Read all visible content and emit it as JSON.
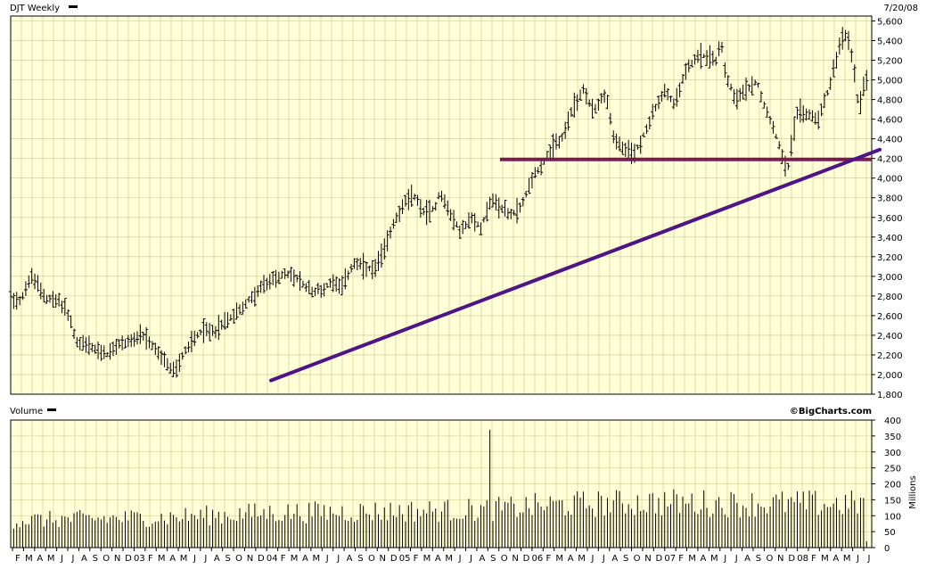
{
  "header": {
    "symbol_label": "DJT Weekly",
    "date_label": "7/20/08",
    "volume_label": "Volume",
    "watermark": "©BigCharts.com"
  },
  "colors": {
    "plot_bg": "#ffffd8",
    "grid": "#c8c88a",
    "price_bars": "#000000",
    "volume_bars": "#000000",
    "support_line": "#7a1b52",
    "trend_line": "#4d1585"
  },
  "chart_data": [
    {
      "type": "line",
      "name": "price",
      "y_ticks": [
        1800,
        2000,
        2200,
        2400,
        2600,
        2800,
        3000,
        3200,
        3400,
        3600,
        3800,
        4000,
        4200,
        4400,
        4600,
        4800,
        5000,
        5200,
        5400,
        5600
      ],
      "y_tick_labels": [
        "1,800",
        "2,000",
        "2,200",
        "2,400",
        "2,600",
        "2,800",
        "3,000",
        "3,200",
        "3,400",
        "3,600",
        "3,800",
        "4,000",
        "4,200",
        "4,400",
        "4,600",
        "4,800",
        "5,000",
        "5,200",
        "5,400",
        "5,600"
      ],
      "ylim": [
        1800,
        5650
      ],
      "x_range_weeks": [
        0,
        281
      ],
      "grid": true,
      "close_points": [
        [
          0,
          2780
        ],
        [
          4,
          2760
        ],
        [
          8,
          3000
        ],
        [
          14,
          2780
        ],
        [
          19,
          2740
        ],
        [
          22,
          2650
        ],
        [
          26,
          2320
        ],
        [
          30,
          2300
        ],
        [
          34,
          2240
        ],
        [
          38,
          2200
        ],
        [
          42,
          2300
        ],
        [
          46,
          2340
        ],
        [
          52,
          2380
        ],
        [
          56,
          2280
        ],
        [
          60,
          2140
        ],
        [
          64,
          2020
        ],
        [
          68,
          2230
        ],
        [
          74,
          2440
        ],
        [
          80,
          2450
        ],
        [
          86,
          2580
        ],
        [
          92,
          2720
        ],
        [
          98,
          2880
        ],
        [
          104,
          3000
        ],
        [
          110,
          3020
        ],
        [
          114,
          2920
        ],
        [
          118,
          2850
        ],
        [
          122,
          2860
        ],
        [
          126,
          2960
        ],
        [
          130,
          2900
        ],
        [
          134,
          3130
        ],
        [
          138,
          3100
        ],
        [
          142,
          3050
        ],
        [
          146,
          3250
        ],
        [
          150,
          3560
        ],
        [
          154,
          3740
        ],
        [
          158,
          3820
        ],
        [
          162,
          3640
        ],
        [
          166,
          3700
        ],
        [
          168,
          3860
        ],
        [
          172,
          3640
        ],
        [
          176,
          3450
        ],
        [
          180,
          3590
        ],
        [
          184,
          3500
        ],
        [
          188,
          3780
        ],
        [
          192,
          3700
        ],
        [
          196,
          3620
        ],
        [
          200,
          3720
        ],
        [
          204,
          4000
        ],
        [
          208,
          4140
        ],
        [
          212,
          4300
        ],
        [
          216,
          4420
        ],
        [
          220,
          4700
        ],
        [
          224,
          4900
        ],
        [
          228,
          4680
        ],
        [
          232,
          4850
        ],
        [
          234,
          4750
        ],
        [
          236,
          4400
        ],
        [
          240,
          4280
        ],
        [
          244,
          4250
        ],
        [
          248,
          4450
        ],
        [
          252,
          4700
        ],
        [
          256,
          4880
        ],
        [
          260,
          4750
        ],
        [
          264,
          5100
        ],
        [
          268,
          5220
        ],
        [
          272,
          5250
        ],
        [
          276,
          5200
        ],
        [
          278,
          5400
        ],
        [
          280,
          5050
        ],
        [
          284,
          4800
        ],
        [
          288,
          4900
        ],
        [
          292,
          5000
        ],
        [
          294,
          4800
        ],
        [
          296,
          4700
        ],
        [
          300,
          4400
        ],
        [
          304,
          4080
        ],
        [
          308,
          4700
        ],
        [
          312,
          4650
        ],
        [
          316,
          4600
        ],
        [
          320,
          4900
        ],
        [
          324,
          5300
        ],
        [
          326,
          5450
        ],
        [
          328,
          5400
        ],
        [
          330,
          5150
        ],
        [
          332,
          4680
        ],
        [
          334,
          4980
        ]
      ],
      "bar_count": 285
    },
    {
      "type": "bar",
      "name": "volume",
      "unit_label": "Millions",
      "y_ticks": [
        0,
        50,
        100,
        150,
        200,
        250,
        300,
        350,
        400
      ],
      "y_tick_labels": [
        "0",
        "50",
        "100",
        "150",
        "200",
        "250",
        "300",
        "350",
        "400"
      ],
      "ylim": [
        0,
        400
      ],
      "spike": {
        "week": 188,
        "value": 370
      },
      "level_points": [
        [
          0,
          90
        ],
        [
          60,
          100
        ],
        [
          100,
          115
        ],
        [
          150,
          120
        ],
        [
          186,
          125
        ],
        [
          210,
          140
        ],
        [
          250,
          150
        ],
        [
          285,
          145
        ]
      ]
    }
  ],
  "support_line": {
    "y": 4190,
    "from_week": 188,
    "to_week": 337
  },
  "trend_line": {
    "from": [
      60,
      1940
    ],
    "to": [
      336,
      4290
    ]
  },
  "x_axis_labels": [
    "F",
    "M",
    "A",
    "M",
    "J",
    "J",
    "A",
    "S",
    "O",
    "N",
    "D",
    "03",
    "F",
    "M",
    "A",
    "M",
    "J",
    "J",
    "A",
    "S",
    "O",
    "N",
    "D",
    "04",
    "F",
    "M",
    "A",
    "M",
    "J",
    "J",
    "A",
    "S",
    "O",
    "N",
    "D",
    "05",
    "F",
    "M",
    "A",
    "M",
    "J",
    "J",
    "A",
    "S",
    "O",
    "N",
    "D",
    "06",
    "F",
    "M",
    "A",
    "M",
    "J",
    "J",
    "A",
    "S",
    "O",
    "N",
    "D",
    "07",
    "F",
    "M",
    "A",
    "M",
    "J",
    "J",
    "A",
    "S",
    "O",
    "N",
    "D",
    "08",
    "F",
    "M",
    "A",
    "M",
    "J",
    "J"
  ]
}
